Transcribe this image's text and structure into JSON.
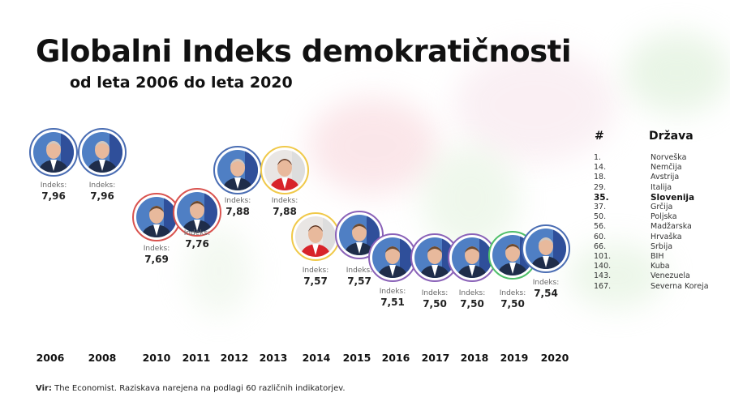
{
  "title": "Globalni Indeks demokratičnosti",
  "subtitle": "od leta 2006 do leta 2020",
  "index_label": "Indeks:",
  "colors": {
    "blue": "#4a6db3",
    "red": "#d9534f",
    "yellow": "#f0c94a",
    "purple": "#8a62b8",
    "green": "#4fbf6a"
  },
  "chart_data": {
    "type": "scatter",
    "title": "Globalni Indeks demokratičnosti",
    "categories": [
      "2006",
      "2008",
      "2010",
      "2011",
      "2012",
      "2013",
      "2014",
      "2015",
      "2016",
      "2017",
      "2018",
      "2019",
      "2020"
    ],
    "values": [
      7.96,
      7.96,
      7.69,
      7.76,
      7.88,
      7.88,
      7.57,
      7.57,
      7.51,
      7.5,
      7.5,
      7.5,
      7.54
    ],
    "value_labels": [
      "7,96",
      "7,96",
      "7,69",
      "7,76",
      "7,88",
      "7,88",
      "7,57",
      "7,57",
      "7,51",
      "7,50",
      "7,50",
      "7,50",
      "7,54"
    ],
    "ring_colors": [
      "blue",
      "blue",
      "red",
      "red",
      "blue",
      "yellow",
      "yellow",
      "purple",
      "purple",
      "purple",
      "purple",
      "green",
      "blue"
    ]
  },
  "ranking": {
    "rank_header": "#",
    "country_header": "Država",
    "rows": [
      {
        "rank": "1.",
        "country": "Norveška"
      },
      {
        "rank": "14.",
        "country": "Nemčija"
      },
      {
        "rank": "18.",
        "country": "Avstrija"
      },
      {
        "rank": "29.",
        "country": "Italija"
      },
      {
        "rank": "35.",
        "country": "Slovenija",
        "highlight": true
      },
      {
        "rank": "37.",
        "country": "Grčija"
      },
      {
        "rank": "50.",
        "country": "Poljska"
      },
      {
        "rank": "56.",
        "country": "Madžarska"
      },
      {
        "rank": "60.",
        "country": "Hrvaška"
      },
      {
        "rank": "66.",
        "country": "Srbija"
      },
      {
        "rank": "101.",
        "country": "BIH"
      },
      {
        "rank": "140.",
        "country": "Kuba"
      },
      {
        "rank": "143.",
        "country": "Venezuela"
      },
      {
        "rank": "167.",
        "country": "Severna Koreja"
      }
    ]
  },
  "source": {
    "label": "Vir:",
    "text": " The Economist. Raziskava narejena na podlagi 60 različnih indikatorjev."
  }
}
